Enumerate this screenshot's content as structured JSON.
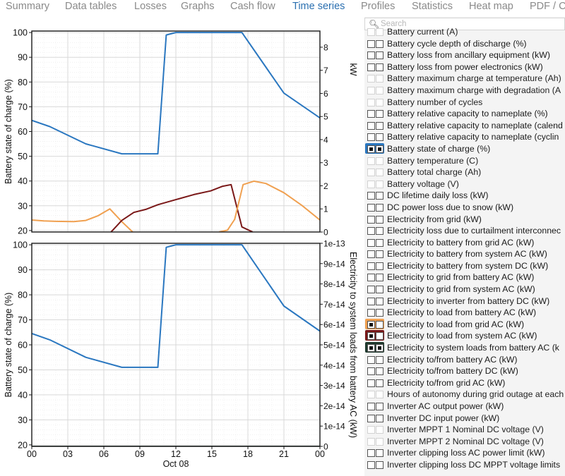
{
  "tabs": [
    "Summary",
    "Data tables",
    "Losses",
    "Graphs",
    "Cash flow",
    "Time series",
    "Profiles",
    "Statistics",
    "Heat map",
    "PDF / C"
  ],
  "active_tab": "Time series",
  "search": {
    "placeholder": "Search"
  },
  "variables": [
    {
      "label": "Battery current (A)",
      "state": "dim"
    },
    {
      "label": "Battery cycle depth of discharge (%)",
      "state": "normal"
    },
    {
      "label": "Battery loss from ancillary equipment (kW)",
      "state": "normal"
    },
    {
      "label": "Battery loss from power electronics (kW)",
      "state": "normal"
    },
    {
      "label": "Battery maximum charge at temperature (Ah)",
      "state": "dim"
    },
    {
      "label": "Battery maximum charge with degradation (A",
      "state": "dim"
    },
    {
      "label": "Battery number of cycles",
      "state": "dim"
    },
    {
      "label": "Battery relative capacity to nameplate (%)",
      "state": "normal"
    },
    {
      "label": "Battery relative capacity to nameplate (calend",
      "state": "normal"
    },
    {
      "label": "Battery relative capacity to nameplate (cyclin",
      "state": "normal"
    },
    {
      "label": "Battery state of charge (%)",
      "state": "selected",
      "color": "#2a77c0"
    },
    {
      "label": "Battery temperature (C)",
      "state": "dim"
    },
    {
      "label": "Battery total charge (Ah)",
      "state": "dim"
    },
    {
      "label": "Battery voltage (V)",
      "state": "dim"
    },
    {
      "label": "DC lifetime daily loss (kW)",
      "state": "normal"
    },
    {
      "label": "DC power loss due to snow (kW)",
      "state": "normal"
    },
    {
      "label": "Electricity from grid (kW)",
      "state": "normal"
    },
    {
      "label": "Electricity loss due to curtailment interconnec",
      "state": "normal"
    },
    {
      "label": "Electricity to battery from grid AC (kW)",
      "state": "normal"
    },
    {
      "label": "Electricity to battery from system AC (kW)",
      "state": "normal"
    },
    {
      "label": "Electricity to battery from system DC (kW)",
      "state": "normal"
    },
    {
      "label": "Electricity to grid from battery AC (kW)",
      "state": "normal"
    },
    {
      "label": "Electricity to grid from system AC (kW)",
      "state": "normal"
    },
    {
      "label": "Electricity to inverter from battery DC (kW)",
      "state": "normal"
    },
    {
      "label": "Electricity to load from battery AC (kW)",
      "state": "normal"
    },
    {
      "label": "Electricity to load from grid AC (kW)",
      "state": "selected",
      "color": "#f0a050"
    },
    {
      "label": "Electricity to load from system AC (kW)",
      "state": "selected",
      "color": "#7a1818"
    },
    {
      "label": "Electricity to system loads from battery AC (k",
      "state": "selected",
      "color": "#1f3a2e"
    },
    {
      "label": "Electricity to/from battery AC (kW)",
      "state": "normal"
    },
    {
      "label": "Electricity to/from battery DC (kW)",
      "state": "normal"
    },
    {
      "label": "Electricity to/from grid AC (kW)",
      "state": "normal"
    },
    {
      "label": "Hours of autonomy during grid outage at each",
      "state": "dim"
    },
    {
      "label": "Inverter AC output power (kW)",
      "state": "normal"
    },
    {
      "label": "Inverter DC input power (kW)",
      "state": "normal"
    },
    {
      "label": "Inverter MPPT 1 Nominal DC voltage (V)",
      "state": "dim"
    },
    {
      "label": "Inverter MPPT 2 Nominal DC voltage (V)",
      "state": "dim"
    },
    {
      "label": "Inverter clipping loss AC power limit (kW)",
      "state": "normal"
    },
    {
      "label": "Inverter clipping loss DC MPPT voltage limits",
      "state": "normal"
    }
  ],
  "chart_data": [
    {
      "type": "line",
      "xlabel": "Oct 08",
      "x_ticks": [
        "00",
        "03",
        "06",
        "09",
        "12",
        "15",
        "18",
        "21",
        "00"
      ],
      "xlim": [
        0,
        24
      ],
      "ylabel": "Battery state of charge (%)",
      "ylim": [
        19.4,
        100.6
      ],
      "y_ticks": [
        20,
        30,
        40,
        50,
        60,
        70,
        80,
        90,
        100
      ],
      "y2label": "kW",
      "y2lim": [
        0,
        8.7
      ],
      "y2_ticks": [
        "0",
        "1",
        "2",
        "3",
        "4",
        "5",
        "6",
        "7",
        "8"
      ],
      "grid": true,
      "series": [
        {
          "name": "Battery state of charge (%)",
          "axis": "left",
          "color": "#2a77c0",
          "x": [
            0,
            1.5,
            4.5,
            7.5,
            10.5,
            11.2,
            12,
            13.5,
            17.5,
            21,
            24
          ],
          "y": [
            64.5,
            62,
            55,
            51,
            51,
            99,
            100,
            100,
            100,
            75.5,
            65.5
          ]
        },
        {
          "name": "Electricity to load from grid AC (kW)",
          "axis": "right",
          "color": "#f0a050",
          "x": [
            0,
            1,
            2,
            3.5,
            4.5,
            5.5,
            6.5,
            7.5,
            8.4
          ],
          "y": [
            0.52,
            0.48,
            0.46,
            0.45,
            0.5,
            0.7,
            1.0,
            0.45,
            0
          ]
        },
        {
          "name": "Electricity to load from system AC (kW)",
          "axis": "right",
          "color": "#7a1818",
          "x": [
            6.6,
            7.5,
            8.5,
            9.5,
            10.5,
            12,
            13.5,
            14.9,
            15.9,
            16.6,
            17.5,
            18.4
          ],
          "y": [
            0,
            0.5,
            0.85,
            0.98,
            1.18,
            1.4,
            1.62,
            1.78,
            1.98,
            2.05,
            0.22,
            0
          ]
        },
        {
          "name": "Electricity to load from grid AC (kW)",
          "axis": "right",
          "color": "#f0a050",
          "x": [
            15.6,
            16.3,
            16.9,
            17.6,
            18.5,
            19.5,
            21,
            22.5,
            24
          ],
          "y": [
            0,
            0.08,
            0.55,
            2.05,
            2.2,
            2.1,
            1.7,
            1.15,
            0.52
          ]
        }
      ]
    },
    {
      "type": "line",
      "xlabel": "Oct 08",
      "x_ticks": [
        "00",
        "03",
        "06",
        "09",
        "12",
        "15",
        "18",
        "21",
        "00"
      ],
      "xlim": [
        0,
        24
      ],
      "ylabel": "Battery state of charge (%)",
      "ylim": [
        19.4,
        100.6
      ],
      "y_ticks": [
        20,
        30,
        40,
        50,
        60,
        70,
        80,
        90,
        100
      ],
      "y2label": "Electricity to system loads from battery AC (kW)",
      "y2lim": [
        0,
        1e-13
      ],
      "y2_ticks": [
        "0",
        "1e-14",
        "2e-14",
        "3e-14",
        "4e-14",
        "5e-14",
        "6e-14",
        "7e-14",
        "8e-14",
        "9e-14",
        "1e-13"
      ],
      "grid": true,
      "series": [
        {
          "name": "Battery state of charge (%)",
          "axis": "left",
          "color": "#2a77c0",
          "x": [
            0,
            1.5,
            4.5,
            7.5,
            10.5,
            11.2,
            12,
            13.5,
            17.5,
            21,
            24
          ],
          "y": [
            64.5,
            62,
            55,
            51,
            51,
            99,
            100,
            100,
            100,
            75.5,
            65.5
          ]
        },
        {
          "name": "Electricity to system loads from battery AC (kW)",
          "axis": "right",
          "color": "#1f3a2e",
          "x": [
            0,
            24
          ],
          "y": [
            0,
            0
          ]
        }
      ]
    }
  ]
}
